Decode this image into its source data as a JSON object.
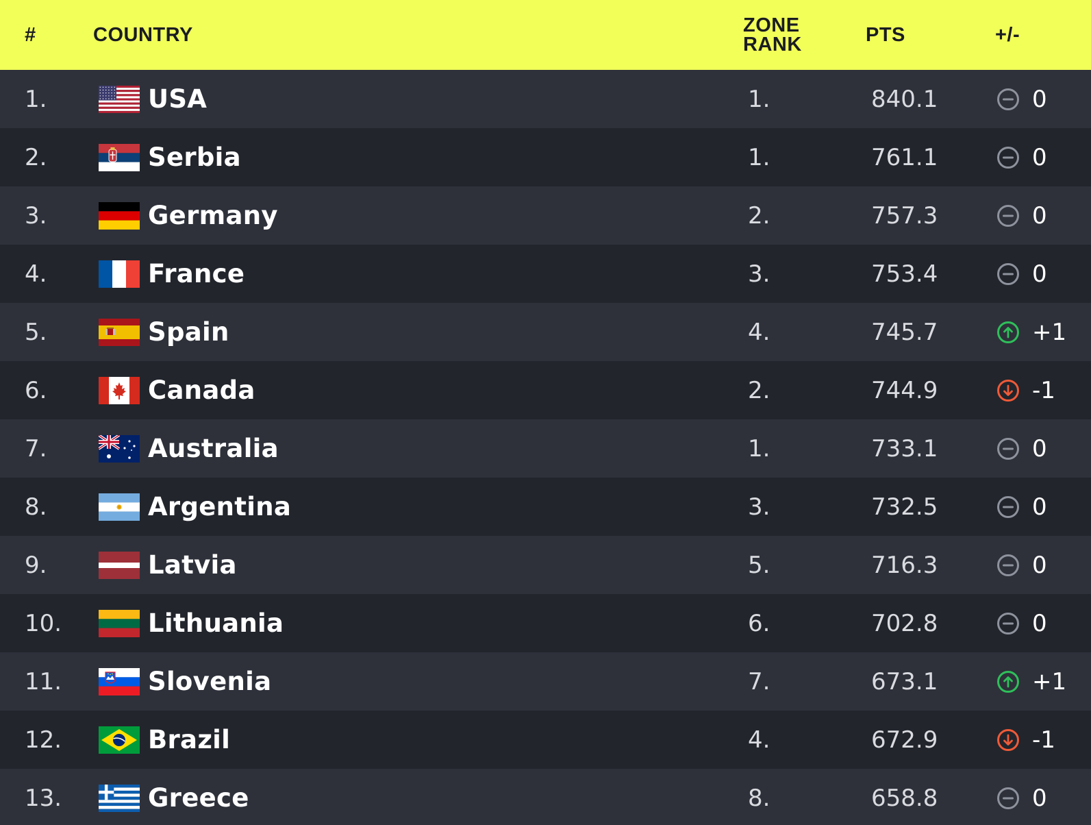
{
  "header": {
    "rank": "#",
    "country": "COUNTRY",
    "zone_rank_line1": "ZONE",
    "zone_rank_line2": "RANK",
    "pts": "PTS",
    "diff": "+/-"
  },
  "colors": {
    "header_bg": "#f2ff59",
    "row_odd": "#2e313a",
    "row_even": "#22252c",
    "neutral_icon": "#8e929c",
    "up_icon": "#2fbf5a",
    "down_icon": "#ef5a38"
  },
  "rows": [
    {
      "rank": "1.",
      "country": "USA",
      "flag": "usa-flag-icon",
      "zone_rank": "1.",
      "pts": "840.1",
      "trend": "neutral",
      "diff": "0"
    },
    {
      "rank": "2.",
      "country": "Serbia",
      "flag": "serbia-flag-icon",
      "zone_rank": "1.",
      "pts": "761.1",
      "trend": "neutral",
      "diff": "0"
    },
    {
      "rank": "3.",
      "country": "Germany",
      "flag": "germany-flag-icon",
      "zone_rank": "2.",
      "pts": "757.3",
      "trend": "neutral",
      "diff": "0"
    },
    {
      "rank": "4.",
      "country": "France",
      "flag": "france-flag-icon",
      "zone_rank": "3.",
      "pts": "753.4",
      "trend": "neutral",
      "diff": "0"
    },
    {
      "rank": "5.",
      "country": "Spain",
      "flag": "spain-flag-icon",
      "zone_rank": "4.",
      "pts": "745.7",
      "trend": "up",
      "diff": "+1"
    },
    {
      "rank": "6.",
      "country": "Canada",
      "flag": "canada-flag-icon",
      "zone_rank": "2.",
      "pts": "744.9",
      "trend": "down",
      "diff": "-1"
    },
    {
      "rank": "7.",
      "country": "Australia",
      "flag": "australia-flag-icon",
      "zone_rank": "1.",
      "pts": "733.1",
      "trend": "neutral",
      "diff": "0"
    },
    {
      "rank": "8.",
      "country": "Argentina",
      "flag": "argentina-flag-icon",
      "zone_rank": "3.",
      "pts": "732.5",
      "trend": "neutral",
      "diff": "0"
    },
    {
      "rank": "9.",
      "country": "Latvia",
      "flag": "latvia-flag-icon",
      "zone_rank": "5.",
      "pts": "716.3",
      "trend": "neutral",
      "diff": "0"
    },
    {
      "rank": "10.",
      "country": "Lithuania",
      "flag": "lithuania-flag-icon",
      "zone_rank": "6.",
      "pts": "702.8",
      "trend": "neutral",
      "diff": "0"
    },
    {
      "rank": "11.",
      "country": "Slovenia",
      "flag": "slovenia-flag-icon",
      "zone_rank": "7.",
      "pts": "673.1",
      "trend": "up",
      "diff": "+1"
    },
    {
      "rank": "12.",
      "country": "Brazil",
      "flag": "brazil-flag-icon",
      "zone_rank": "4.",
      "pts": "672.9",
      "trend": "down",
      "diff": "-1"
    },
    {
      "rank": "13.",
      "country": "Greece",
      "flag": "greece-flag-icon",
      "zone_rank": "8.",
      "pts": "658.8",
      "trend": "neutral",
      "diff": "0"
    }
  ]
}
